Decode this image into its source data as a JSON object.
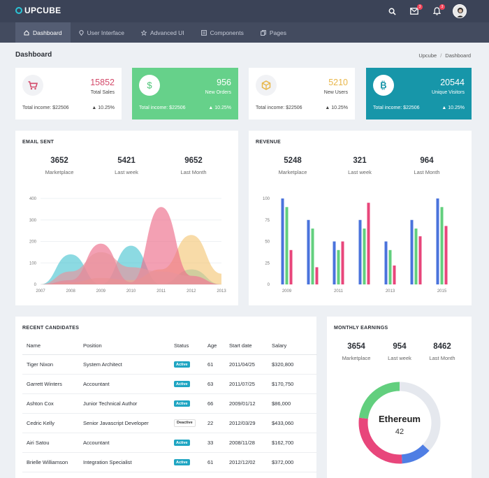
{
  "brand": {
    "name": "UPCUBE"
  },
  "topbar": {
    "icons": [
      "search-icon",
      "mail-icon",
      "bell-icon"
    ],
    "mail_badge": "3",
    "bell_badge": "3"
  },
  "nav": [
    {
      "label": "Dashboard",
      "icon": "home-icon"
    },
    {
      "label": "User Interface",
      "icon": "location-pin-icon"
    },
    {
      "label": "Advanced UI",
      "icon": "star-icon"
    },
    {
      "label": "Components",
      "icon": "list-icon"
    },
    {
      "label": "Pages",
      "icon": "copy-icon"
    }
  ],
  "page": {
    "title": "Dashboard",
    "breadcrumb": [
      "Upcube",
      "Dashboard"
    ],
    "breadcrumb_sep": "/"
  },
  "stats": [
    {
      "value": "15852",
      "label": "Total Sales",
      "income": "Total income: $22506",
      "pct": "10.25%",
      "icon": "cart-icon",
      "value_color": "#d34a6a"
    },
    {
      "value": "956",
      "label": "New Orders",
      "income": "Total income: $22506",
      "pct": "10.25%",
      "icon": "dollar-icon",
      "bg": "#66d18a"
    },
    {
      "value": "5210",
      "label": "New Users",
      "income": "Total income: $22506",
      "pct": "10.25%",
      "icon": "cube-icon",
      "value_color": "#e8b649"
    },
    {
      "value": "20544",
      "label": "Unique Visitors",
      "income": "Total income: $22506",
      "pct": "10.25%",
      "icon": "bitcoin-icon",
      "bg": "#1796a9"
    }
  ],
  "email_sent": {
    "title": "EMAIL SENT",
    "metrics": [
      {
        "value": "3652",
        "label": "Marketplace"
      },
      {
        "value": "5421",
        "label": "Last week"
      },
      {
        "value": "9652",
        "label": "Last Month"
      }
    ]
  },
  "revenue": {
    "title": "REVENUE",
    "metrics": [
      {
        "value": "5248",
        "label": "Marketplace"
      },
      {
        "value": "321",
        "label": "Last week"
      },
      {
        "value": "964",
        "label": "Last Month"
      }
    ]
  },
  "chart_data": [
    {
      "type": "area",
      "x": [
        "2007",
        "2008",
        "2009",
        "2010",
        "2011",
        "2012",
        "2013"
      ],
      "ylim": [
        0,
        400
      ],
      "yticks": [
        "400",
        "300",
        "200",
        "100",
        "0"
      ],
      "series": [
        {
          "color": "#4fc6d3",
          "values": [
            0,
            140,
            0,
            180,
            0,
            70,
            0
          ]
        },
        {
          "color": "#f4c87a",
          "values": [
            0,
            10,
            30,
            20,
            70,
            230,
            50
          ]
        },
        {
          "color": "#ec6d8b",
          "values": [
            0,
            20,
            190,
            10,
            360,
            40,
            0
          ]
        },
        {
          "color": "#e8949c",
          "values": [
            0,
            60,
            150,
            80,
            60,
            40,
            0
          ]
        }
      ]
    },
    {
      "type": "bar",
      "x": [
        "2009",
        "",
        "2011",
        "",
        "2013",
        "",
        "2015"
      ],
      "ylim": [
        0,
        100
      ],
      "yticks": [
        "100",
        "75",
        "50",
        "25",
        "0"
      ],
      "series": [
        {
          "color": "#4a73dc",
          "values": [
            100,
            75,
            50,
            75,
            50,
            75,
            100
          ]
        },
        {
          "color": "#62cf7e",
          "values": [
            90,
            65,
            40,
            65,
            40,
            65,
            90
          ]
        },
        {
          "color": "#e8467b",
          "values": [
            40,
            20,
            50,
            95,
            22,
            56,
            68
          ]
        }
      ]
    },
    {
      "type": "pie",
      "center_title": "Ethereum",
      "center_value": "42",
      "slices": [
        {
          "color": "#e5e8ee",
          "value": 37
        },
        {
          "color": "#4f7ee4",
          "value": 12
        },
        {
          "color": "#e8467b",
          "value": 28
        },
        {
          "color": "#62cf7e",
          "value": 23
        }
      ]
    }
  ],
  "candidates": {
    "title": "RECENT CANDIDATES",
    "headers": [
      "Name",
      "Position",
      "Status",
      "Age",
      "Start date",
      "Salary"
    ],
    "rows": [
      [
        "Tiger Nixon",
        "System Architect",
        "Active",
        "61",
        "2011/04/25",
        "$320,800"
      ],
      [
        "Garrett Winters",
        "Accountant",
        "Active",
        "63",
        "2011/07/25",
        "$170,750"
      ],
      [
        "Ashton Cox",
        "Junior Technical Author",
        "Active",
        "66",
        "2009/01/12",
        "$86,000"
      ],
      [
        "Cedric Kelly",
        "Senior Javascript Developer",
        "Deactive",
        "22",
        "2012/03/29",
        "$433,060"
      ],
      [
        "Airi Satou",
        "Accountant",
        "Active",
        "33",
        "2008/11/28",
        "$162,700"
      ],
      [
        "Brielle Williamson",
        "Integration Specialist",
        "Active",
        "61",
        "2012/12/02",
        "$372,000"
      ]
    ]
  },
  "earnings": {
    "title": "MONTHLY EARNINGS",
    "metrics": [
      {
        "value": "3654",
        "label": "Marketplace"
      },
      {
        "value": "954",
        "label": "Last week"
      },
      {
        "value": "8462",
        "label": "Last Month"
      }
    ]
  }
}
